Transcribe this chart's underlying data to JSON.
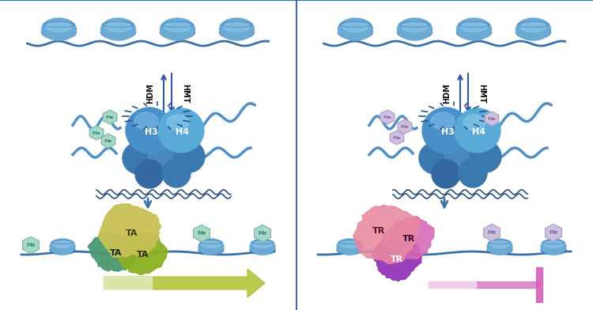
{
  "bg_color": "#ffffff",
  "divider_color": "#4169b0",
  "hdm_text": "HDM",
  "hmt_text": "HMT",
  "h3_text": "H3",
  "h4_text": "H4",
  "nuc_color": "#6aaad4",
  "nuc_dark": "#3a6fa8",
  "nuc_light": "#8ac4e8",
  "dna_color": "#3a6fa8",
  "me_left_fill": "#a8d8c8",
  "me_left_edge": "#7ab8a8",
  "me_left_text": "#3a8a7a",
  "me_right_fill": "#d0c0e0",
  "me_right_edge": "#b0a0c8",
  "me_right_text": "#8070a8",
  "ta_colors": [
    "#c8c860",
    "#a0b030",
    "#508870"
  ],
  "tr_colors": [
    "#e888a0",
    "#d060b0",
    "#9030b8"
  ],
  "arrow_down_color": "#3a6fa8",
  "green_arrow_color": "#b0c030",
  "pink_bar_color": "#d060b8"
}
